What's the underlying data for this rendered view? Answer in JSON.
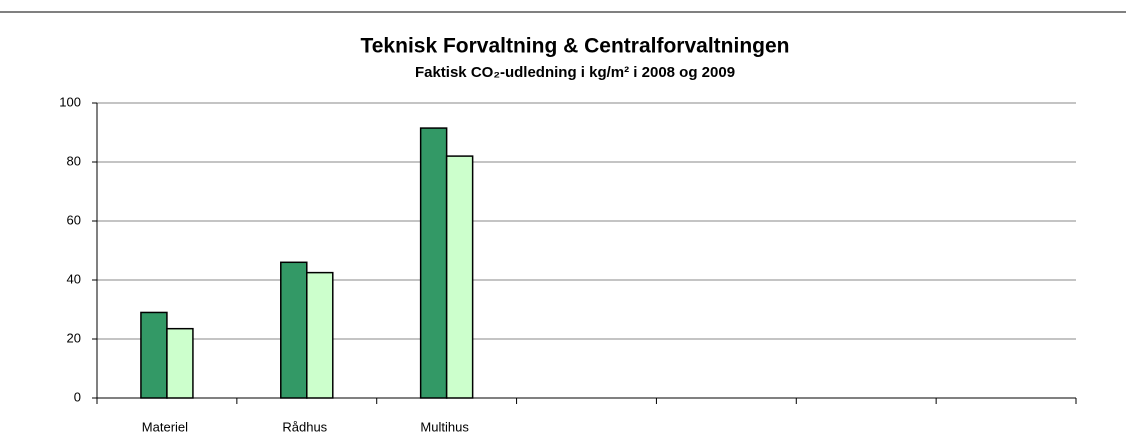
{
  "chart_data": {
    "type": "bar",
    "title": "Teknisk Forvaltning & Centralforvaltningen",
    "subtitle": "Faktisk CO₂-udledning i kg/m² i 2008 og 2009",
    "categories": [
      "Materiel",
      "Rådhus",
      "Multihus",
      null,
      null,
      null,
      null
    ],
    "series": [
      {
        "color": "#339966",
        "values": [
          29,
          46,
          91.5,
          null,
          null,
          null,
          null
        ]
      },
      {
        "color": "#ccffcc",
        "values": [
          23.5,
          42.5,
          82,
          null,
          null,
          null,
          null
        ]
      }
    ],
    "ylim": [
      0,
      100
    ],
    "yticks": [
      0,
      20,
      40,
      60,
      80,
      100
    ],
    "grid": true
  }
}
